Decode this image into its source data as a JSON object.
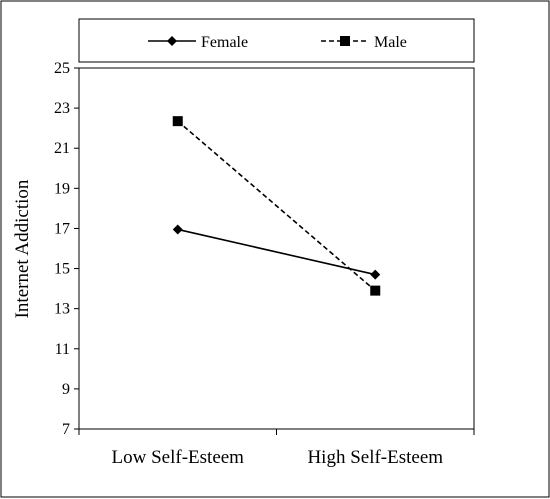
{
  "chart_data": {
    "type": "line",
    "categories": [
      "Low Self-Esteem",
      "High Self-Esteem"
    ],
    "series": [
      {
        "name": "Female",
        "values": [
          16.95,
          14.7
        ],
        "marker": "diamond",
        "dash": "solid"
      },
      {
        "name": "Male",
        "values": [
          22.35,
          13.9
        ],
        "marker": "square",
        "dash": "dashed"
      }
    ],
    "ylabel": "Internet Addiction",
    "ylim": [
      7,
      25
    ],
    "yticks": [
      7,
      9,
      11,
      13,
      15,
      17,
      19,
      21,
      23,
      25
    ],
    "legend_position": "top",
    "grid": false,
    "line_color": "#000000"
  }
}
